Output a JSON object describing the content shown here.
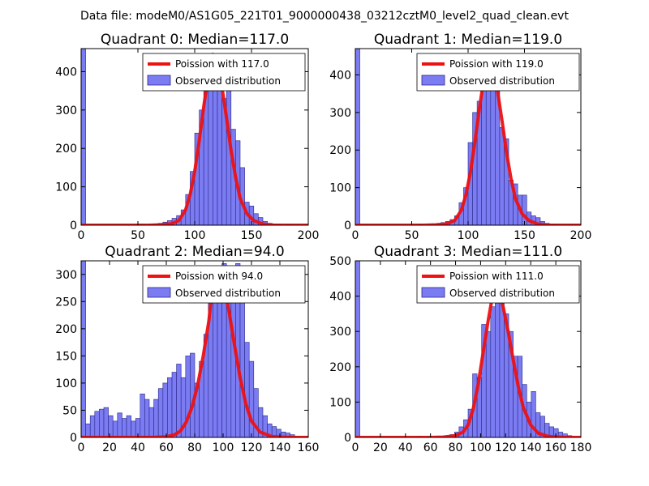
{
  "figure": {
    "suptitle": "Data file: modeM0/AS1G05_221T01_9000000438_03212cztM0_level2_quad_clean.evt"
  },
  "colors": {
    "bar_fill": "#7b7bf2",
    "bar_edge": "#2a2a8a",
    "poisson_line": "#ee1111",
    "legend_border": "#000000"
  },
  "chart_data": [
    {
      "type": "bar",
      "title": "Quadrant 0: Median=117.0",
      "xlim": [
        0,
        200
      ],
      "ylim": [
        0,
        460
      ],
      "xticks": [
        0,
        50,
        100,
        150,
        200
      ],
      "yticks": [
        0,
        100,
        200,
        300,
        400
      ],
      "bin_width": 4,
      "legend": [
        "Poission with 117.0",
        "Observed distribution"
      ],
      "legend_position": "upper-right",
      "bars": [
        [
          0,
          460
        ],
        [
          52,
          2
        ],
        [
          60,
          2
        ],
        [
          64,
          3
        ],
        [
          68,
          5
        ],
        [
          72,
          8
        ],
        [
          76,
          12
        ],
        [
          80,
          18
        ],
        [
          84,
          25
        ],
        [
          88,
          40
        ],
        [
          92,
          80
        ],
        [
          96,
          140
        ],
        [
          100,
          240
        ],
        [
          104,
          300
        ],
        [
          108,
          370
        ],
        [
          112,
          400
        ],
        [
          116,
          390
        ],
        [
          120,
          380
        ],
        [
          124,
          330
        ],
        [
          128,
          360
        ],
        [
          132,
          250
        ],
        [
          136,
          220
        ],
        [
          140,
          150
        ],
        [
          144,
          60
        ],
        [
          148,
          50
        ],
        [
          152,
          30
        ],
        [
          156,
          20
        ],
        [
          160,
          10
        ],
        [
          164,
          5
        ],
        [
          168,
          3
        ],
        [
          172,
          2
        ],
        [
          180,
          2
        ]
      ],
      "poisson": [
        [
          0,
          0
        ],
        [
          60,
          0
        ],
        [
          70,
          1
        ],
        [
          80,
          4
        ],
        [
          86,
          12
        ],
        [
          92,
          40
        ],
        [
          96,
          80
        ],
        [
          100,
          140
        ],
        [
          104,
          220
        ],
        [
          108,
          310
        ],
        [
          112,
          390
        ],
        [
          116,
          445
        ],
        [
          120,
          420
        ],
        [
          124,
          360
        ],
        [
          128,
          280
        ],
        [
          132,
          195
        ],
        [
          136,
          125
        ],
        [
          140,
          70
        ],
        [
          146,
          30
        ],
        [
          152,
          12
        ],
        [
          160,
          3
        ],
        [
          170,
          0
        ],
        [
          200,
          0
        ]
      ]
    },
    {
      "type": "bar",
      "title": "Quadrant 1: Median=119.0",
      "xlim": [
        0,
        200
      ],
      "ylim": [
        0,
        470
      ],
      "xticks": [
        0,
        50,
        100,
        150,
        200
      ],
      "yticks": [
        0,
        100,
        200,
        300,
        400
      ],
      "bin_width": 4,
      "legend": [
        "Poission with 119.0",
        "Observed distribution"
      ],
      "legend_position": "upper-right",
      "bars": [
        [
          0,
          470
        ],
        [
          56,
          2
        ],
        [
          64,
          2
        ],
        [
          68,
          3
        ],
        [
          72,
          5
        ],
        [
          76,
          7
        ],
        [
          80,
          10
        ],
        [
          84,
          15
        ],
        [
          88,
          25
        ],
        [
          92,
          60
        ],
        [
          96,
          100
        ],
        [
          100,
          220
        ],
        [
          104,
          300
        ],
        [
          108,
          330
        ],
        [
          112,
          360
        ],
        [
          116,
          400
        ],
        [
          120,
          390
        ],
        [
          124,
          370
        ],
        [
          128,
          260
        ],
        [
          132,
          230
        ],
        [
          136,
          120
        ],
        [
          140,
          110
        ],
        [
          144,
          80
        ],
        [
          148,
          80
        ],
        [
          152,
          35
        ],
        [
          156,
          25
        ],
        [
          160,
          20
        ],
        [
          164,
          10
        ],
        [
          168,
          5
        ],
        [
          172,
          3
        ],
        [
          176,
          2
        ]
      ],
      "poisson": [
        [
          0,
          0
        ],
        [
          60,
          0
        ],
        [
          72,
          1
        ],
        [
          80,
          3
        ],
        [
          88,
          12
        ],
        [
          94,
          40
        ],
        [
          98,
          80
        ],
        [
          102,
          140
        ],
        [
          106,
          220
        ],
        [
          110,
          310
        ],
        [
          114,
          390
        ],
        [
          118,
          445
        ],
        [
          122,
          420
        ],
        [
          126,
          360
        ],
        [
          130,
          280
        ],
        [
          134,
          195
        ],
        [
          138,
          125
        ],
        [
          142,
          70
        ],
        [
          148,
          30
        ],
        [
          154,
          12
        ],
        [
          162,
          3
        ],
        [
          172,
          0
        ],
        [
          200,
          0
        ]
      ]
    },
    {
      "type": "bar",
      "title": "Quadrant 2: Median=94.0",
      "xlim": [
        0,
        160
      ],
      "ylim": [
        0,
        325
      ],
      "xticks": [
        0,
        20,
        40,
        60,
        80,
        100,
        120,
        140,
        160
      ],
      "yticks": [
        0,
        50,
        100,
        150,
        200,
        250,
        300
      ],
      "bin_width": 3.2,
      "legend": [
        "Poission with 94.0",
        "Observed distribution"
      ],
      "legend_position": "upper-right",
      "bars": [
        [
          0,
          325
        ],
        [
          3.2,
          25
        ],
        [
          6.4,
          40
        ],
        [
          9.6,
          48
        ],
        [
          12.8,
          52
        ],
        [
          16,
          55
        ],
        [
          19.2,
          40
        ],
        [
          22.4,
          30
        ],
        [
          25.6,
          45
        ],
        [
          28.8,
          35
        ],
        [
          32,
          40
        ],
        [
          35.2,
          30
        ],
        [
          38.4,
          35
        ],
        [
          41.6,
          80
        ],
        [
          44.8,
          70
        ],
        [
          48,
          55
        ],
        [
          51.2,
          70
        ],
        [
          54.4,
          90
        ],
        [
          57.6,
          100
        ],
        [
          60.8,
          110
        ],
        [
          64,
          120
        ],
        [
          67.2,
          135
        ],
        [
          70.4,
          110
        ],
        [
          73.6,
          150
        ],
        [
          76.8,
          155
        ],
        [
          80,
          100
        ],
        [
          83.2,
          140
        ],
        [
          86.4,
          190
        ],
        [
          89.6,
          250
        ],
        [
          92.8,
          260
        ],
        [
          96,
          300
        ],
        [
          99.2,
          320
        ],
        [
          102.4,
          310
        ],
        [
          105.6,
          300
        ],
        [
          108.8,
          320
        ],
        [
          112,
          270
        ],
        [
          115.2,
          175
        ],
        [
          118.4,
          140
        ],
        [
          121.6,
          90
        ],
        [
          124.8,
          55
        ],
        [
          128,
          40
        ],
        [
          131.2,
          25
        ],
        [
          134.4,
          20
        ],
        [
          137.6,
          15
        ],
        [
          140.8,
          10
        ],
        [
          144,
          8
        ],
        [
          147.2,
          5
        ]
      ],
      "poisson": [
        [
          0,
          0
        ],
        [
          50,
          0
        ],
        [
          60,
          1
        ],
        [
          66,
          5
        ],
        [
          70,
          12
        ],
        [
          74,
          28
        ],
        [
          78,
          55
        ],
        [
          82,
          95
        ],
        [
          86,
          150
        ],
        [
          90,
          215
        ],
        [
          93,
          290
        ],
        [
          96,
          310
        ],
        [
          100,
          285
        ],
        [
          104,
          235
        ],
        [
          108,
          170
        ],
        [
          112,
          110
        ],
        [
          116,
          62
        ],
        [
          120,
          30
        ],
        [
          126,
          10
        ],
        [
          134,
          2
        ],
        [
          145,
          0
        ],
        [
          160,
          0
        ]
      ]
    },
    {
      "type": "bar",
      "title": "Quadrant 3: Median=111.0",
      "xlim": [
        0,
        180
      ],
      "ylim": [
        0,
        500
      ],
      "xticks": [
        0,
        20,
        40,
        60,
        80,
        100,
        120,
        140,
        160,
        180
      ],
      "yticks": [
        0,
        100,
        200,
        300,
        400,
        500
      ],
      "bin_width": 3.6,
      "legend": [
        "Poission with 111.0",
        "Observed distribution"
      ],
      "legend_position": "upper-right",
      "bars": [
        [
          0,
          500
        ],
        [
          50,
          3
        ],
        [
          57,
          2
        ],
        [
          64,
          3
        ],
        [
          68,
          2
        ],
        [
          72,
          5
        ],
        [
          75.6,
          8
        ],
        [
          79.2,
          15
        ],
        [
          82.8,
          30
        ],
        [
          86.4,
          50
        ],
        [
          90,
          80
        ],
        [
          93.6,
          180
        ],
        [
          97.2,
          170
        ],
        [
          100.8,
          320
        ],
        [
          104.4,
          300
        ],
        [
          108,
          370
        ],
        [
          111.6,
          380
        ],
        [
          115.2,
          400
        ],
        [
          118.8,
          350
        ],
        [
          122.4,
          300
        ],
        [
          126,
          230
        ],
        [
          129.6,
          230
        ],
        [
          133.2,
          150
        ],
        [
          136.8,
          100
        ],
        [
          140.4,
          130
        ],
        [
          144,
          70
        ],
        [
          147.6,
          60
        ],
        [
          151.2,
          40
        ],
        [
          154.8,
          30
        ],
        [
          158.4,
          25
        ],
        [
          162,
          15
        ],
        [
          165.6,
          10
        ],
        [
          169.2,
          5
        ]
      ],
      "poisson": [
        [
          0,
          0
        ],
        [
          60,
          0
        ],
        [
          70,
          1
        ],
        [
          80,
          5
        ],
        [
          86,
          15
        ],
        [
          90,
          35
        ],
        [
          94,
          80
        ],
        [
          98,
          150
        ],
        [
          102,
          240
        ],
        [
          106,
          330
        ],
        [
          109,
          390
        ],
        [
          112,
          420
        ],
        [
          115,
          410
        ],
        [
          118,
          370
        ],
        [
          122,
          300
        ],
        [
          126,
          220
        ],
        [
          130,
          145
        ],
        [
          134,
          85
        ],
        [
          140,
          35
        ],
        [
          146,
          12
        ],
        [
          154,
          3
        ],
        [
          166,
          0
        ],
        [
          180,
          0
        ]
      ]
    }
  ]
}
